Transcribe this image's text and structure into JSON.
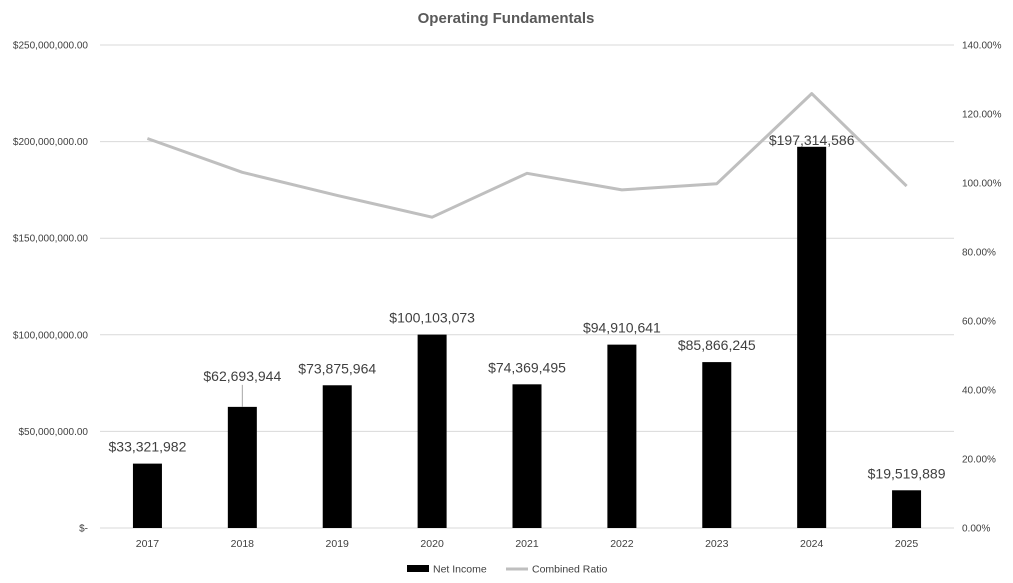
{
  "chart_data": {
    "type": "bar",
    "title": "Operating Fundamentals",
    "categories": [
      "2017",
      "2018",
      "2019",
      "2020",
      "2021",
      "2022",
      "2023",
      "2024",
      "2025"
    ],
    "series": [
      {
        "name": "Net Income",
        "axis": "left",
        "type": "bar",
        "color": "#000000",
        "values": [
          33321982,
          62693944,
          73875964,
          100103073,
          74369495,
          94910641,
          85866245,
          197314586,
          19519889
        ],
        "data_labels": [
          "$33,321,982",
          "$62,693,944",
          "$73,875,964",
          "$100,103,073",
          "$74,369,495",
          "$94,910,641",
          "$85,866,245",
          "$197,314,586",
          "$19,519,889"
        ]
      },
      {
        "name": "Combined Ratio",
        "axis": "right",
        "type": "line",
        "color": "#bfbfbf",
        "values": [
          112.9,
          103.1,
          96.4,
          90.1,
          102.8,
          98.0,
          99.8,
          125.9,
          99.1
        ]
      }
    ],
    "y_left": {
      "ylim": [
        0,
        250000000
      ],
      "ticks": [
        0,
        50000000,
        100000000,
        150000000,
        200000000,
        250000000
      ],
      "tick_labels": [
        "$-",
        "$50,000,000.00",
        "$100,000,000.00",
        "$150,000,000.00",
        "$200,000,000.00",
        "$250,000,000.00"
      ]
    },
    "y_right": {
      "ylim": [
        0,
        140
      ],
      "ticks": [
        0,
        20,
        40,
        60,
        80,
        100,
        120,
        140
      ],
      "tick_labels": [
        "0.00%",
        "20.00%",
        "40.00%",
        "60.00%",
        "80.00%",
        "100.00%",
        "120.00%",
        "140.00%"
      ]
    },
    "grid": true,
    "legend": "bottom",
    "colors": {
      "gridline": "#d9d9d9",
      "text": "#404040",
      "title": "#595959"
    }
  }
}
